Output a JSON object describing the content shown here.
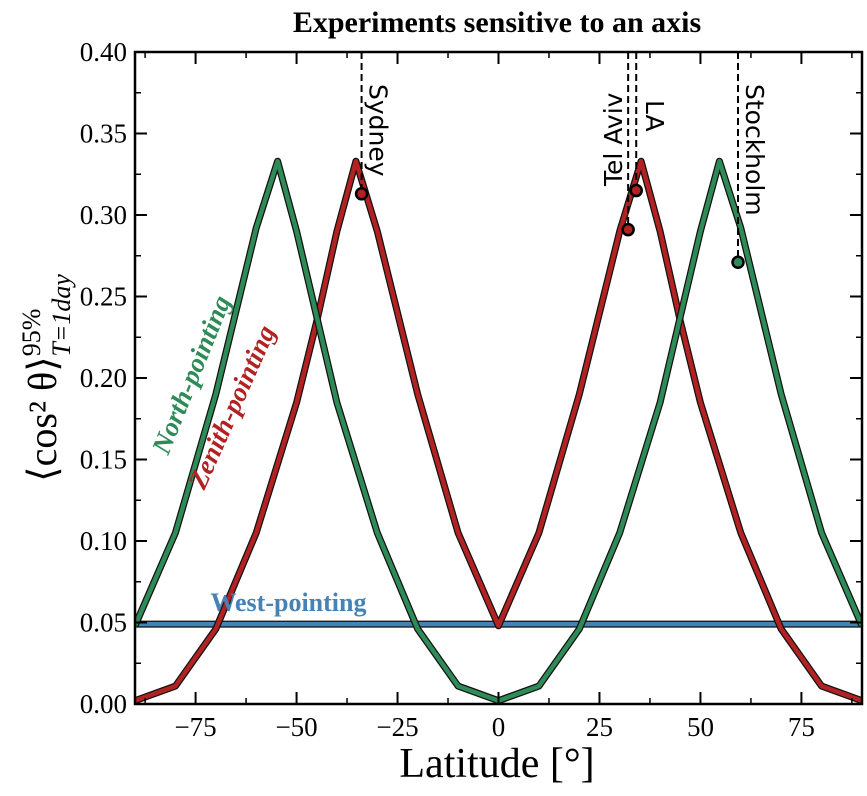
{
  "chart_data": {
    "type": "line",
    "title": "Experiments sensitive to an axis",
    "xlabel": "Latitude [°]",
    "ylabel": "⟨cos² θ⟩",
    "ylabel_sup": "95%",
    "ylabel_sub": "T=1day",
    "xlim": [
      -90,
      90
    ],
    "ylim": [
      0,
      0.4
    ],
    "x_ticks": [
      -75,
      -50,
      -25,
      0,
      25,
      50,
      75
    ],
    "x_tick_labels": [
      "−75",
      "−50",
      "−25",
      "0",
      "25",
      "50",
      "75"
    ],
    "y_ticks": [
      0.0,
      0.05,
      0.1,
      0.15,
      0.2,
      0.25,
      0.3,
      0.35,
      0.4
    ],
    "y_tick_labels": [
      "0.00",
      "0.05",
      "0.10",
      "0.15",
      "0.20",
      "0.25",
      "0.30",
      "0.35",
      "0.40"
    ],
    "grid": false,
    "series": [
      {
        "name": "North-pointing",
        "color": "#2e8b57",
        "x": [
          -90,
          -80,
          -70,
          -60,
          -54.7,
          -50,
          -40,
          -30,
          -20,
          -10,
          0,
          10,
          20,
          30,
          40,
          50,
          54.7,
          60,
          70,
          80,
          90
        ],
        "y": [
          0.048,
          0.105,
          0.19,
          0.292,
          0.333,
          0.29,
          0.185,
          0.105,
          0.046,
          0.011,
          0.002,
          0.011,
          0.046,
          0.105,
          0.185,
          0.29,
          0.333,
          0.292,
          0.19,
          0.105,
          0.048
        ]
      },
      {
        "name": "Zenith-pointing",
        "color": "#b22222",
        "x": [
          -90,
          -80,
          -70,
          -60,
          -50,
          -45,
          -40,
          -35.3,
          -30,
          -20,
          -10,
          0,
          10,
          20,
          30,
          35.3,
          40,
          45,
          50,
          60,
          70,
          80,
          90
        ],
        "y": [
          0.002,
          0.011,
          0.046,
          0.105,
          0.185,
          0.235,
          0.29,
          0.333,
          0.29,
          0.19,
          0.105,
          0.048,
          0.105,
          0.19,
          0.29,
          0.333,
          0.29,
          0.235,
          0.185,
          0.105,
          0.046,
          0.011,
          0.002
        ]
      },
      {
        "name": "West-pointing",
        "color": "#4682b4",
        "x": [
          -90,
          90
        ],
        "y": [
          0.049,
          0.049
        ]
      }
    ],
    "annotations": [
      {
        "label": "Sydney",
        "x": -33.9,
        "y": 0.313,
        "series": "Zenith-pointing"
      },
      {
        "label": "Tel Aviv",
        "x": 32.1,
        "y": 0.291,
        "series": "Zenith-pointing"
      },
      {
        "label": "LA",
        "x": 34.1,
        "y": 0.315,
        "series": "Zenith-pointing"
      },
      {
        "label": "Stockholm",
        "x": 59.3,
        "y": 0.271,
        "series": "North-pointing"
      }
    ],
    "curve_labels": [
      {
        "text": "North-pointing",
        "color": "#2e8b57",
        "x": -74,
        "y": 0.2,
        "angle": -68
      },
      {
        "text": "Zenith-pointing",
        "color": "#b22222",
        "x": -64,
        "y": 0.18,
        "angle": -66
      },
      {
        "text": "West-pointing",
        "color": "#4682b4",
        "x": -52,
        "y": 0.057,
        "angle": 0
      }
    ]
  }
}
